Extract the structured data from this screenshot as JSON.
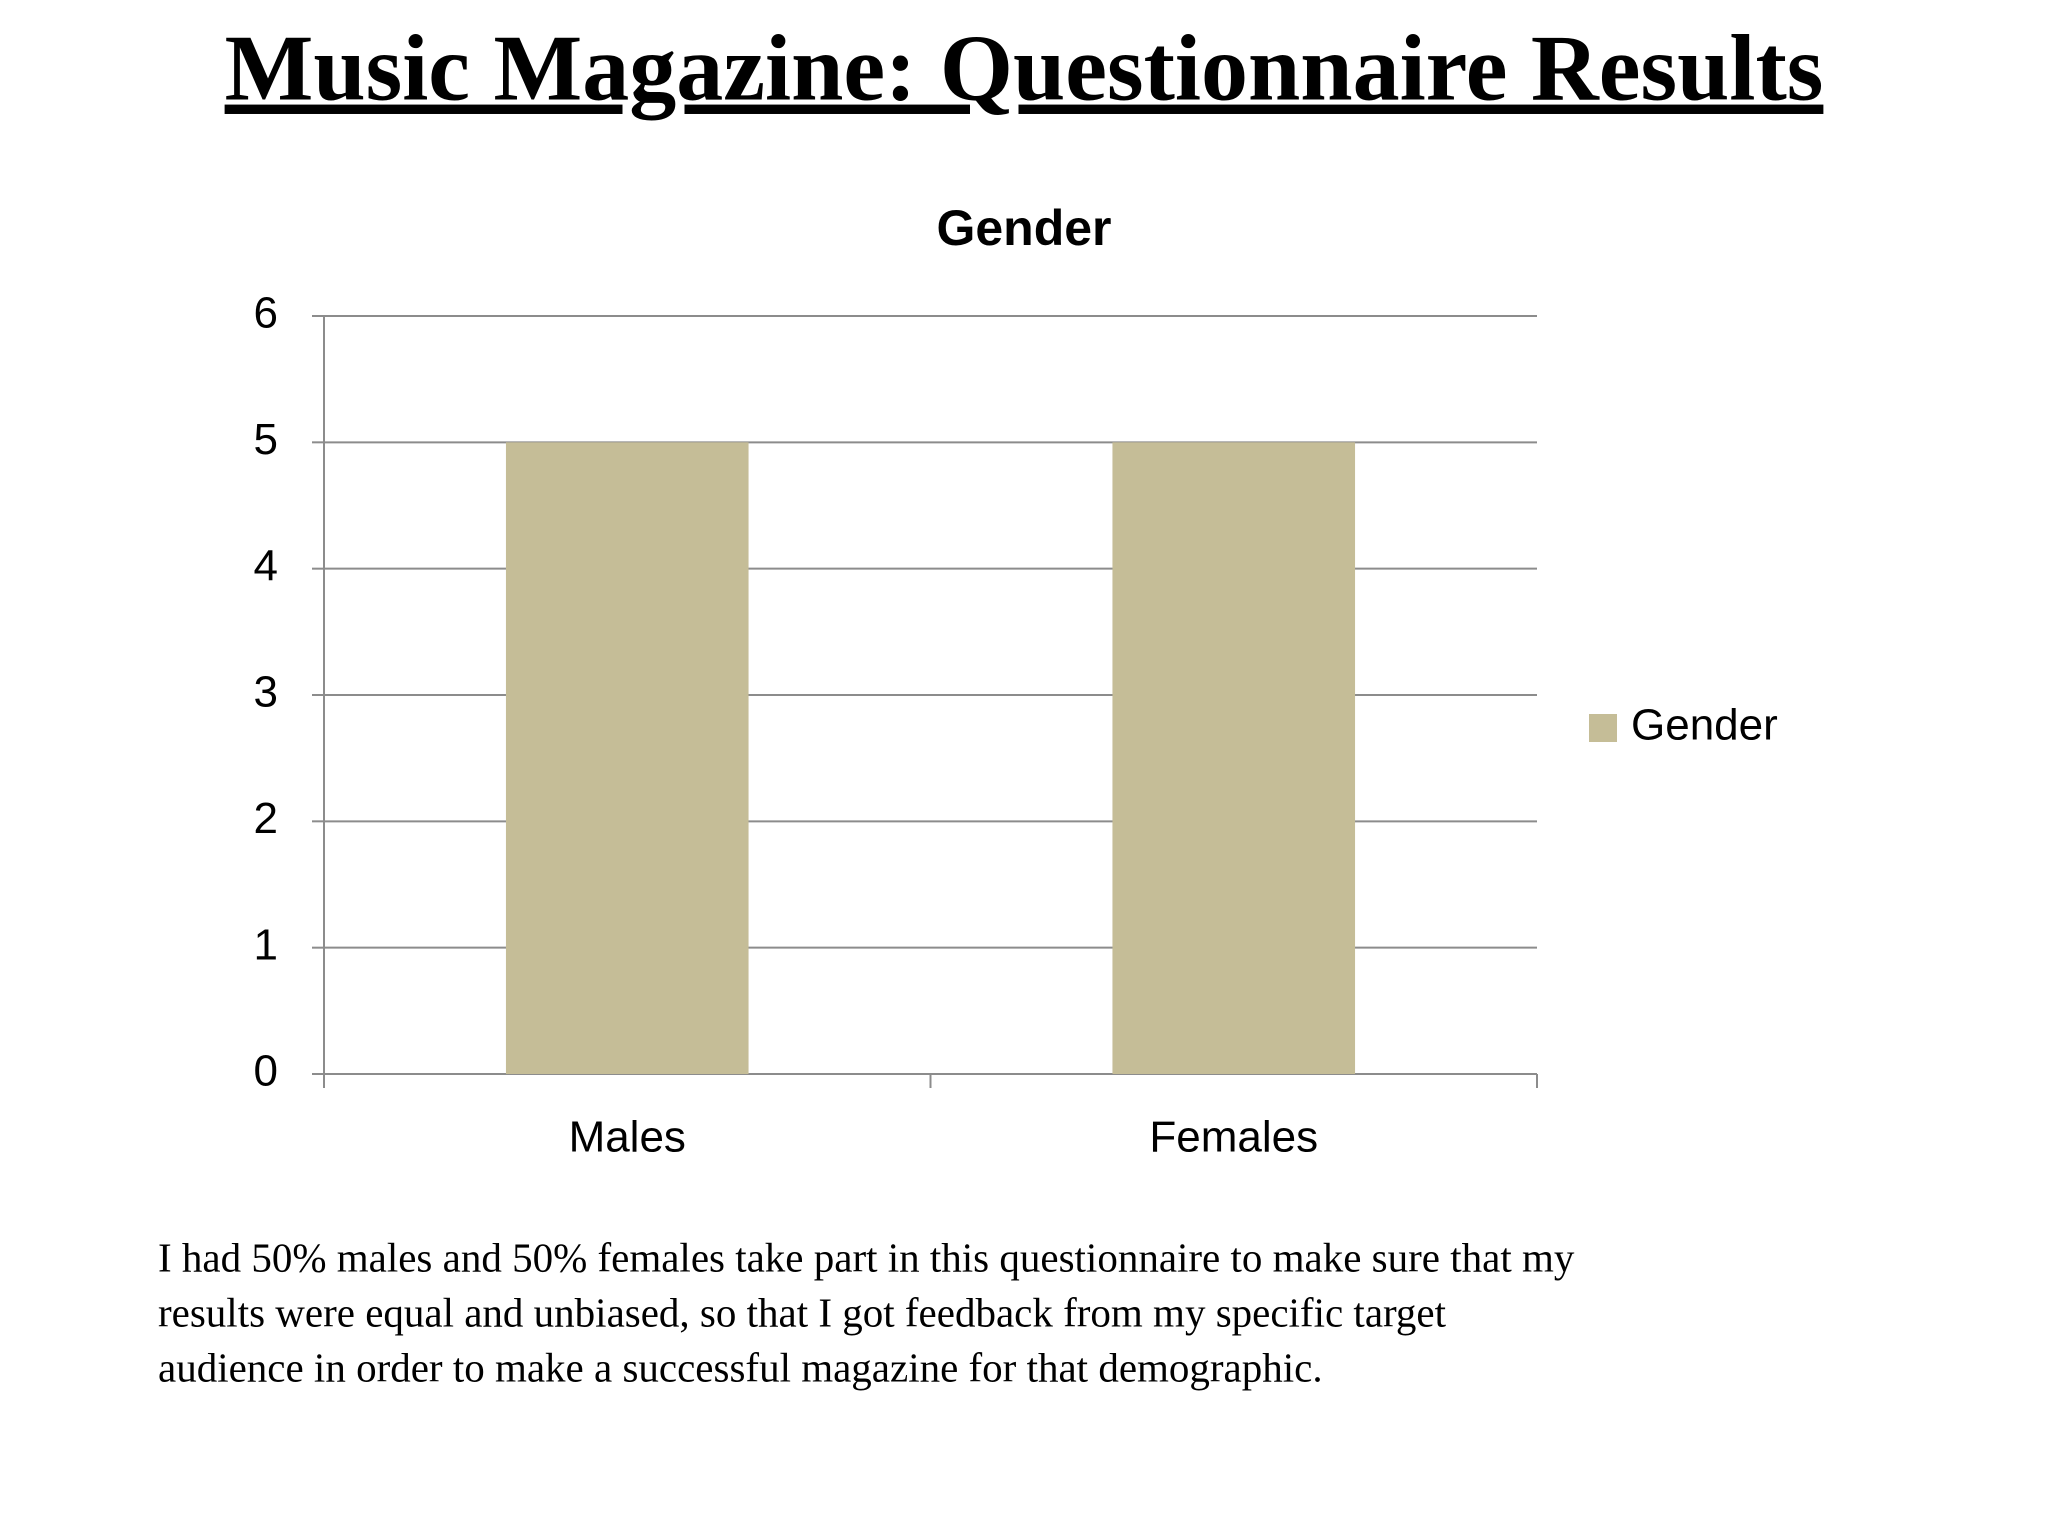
{
  "slide_title": "Music Magazine: Questionnaire Results",
  "chart_data": {
    "type": "bar",
    "title": "Gender",
    "categories": [
      "Males",
      "Females"
    ],
    "series": [
      {
        "name": "Gender",
        "color": "#c5bd97",
        "values": [
          5,
          5
        ]
      }
    ],
    "ylim": [
      0,
      6
    ],
    "yticks": [
      0,
      1,
      2,
      3,
      4,
      5,
      6
    ],
    "grid": true,
    "legend": "right"
  },
  "caption": [
    "I had 50% males and 50% females take part in this questionnaire to make sure that my",
    "results were equal and unbiased, so that I got feedback from my specific target",
    "audience in order to make a successful magazine for that demographic."
  ]
}
